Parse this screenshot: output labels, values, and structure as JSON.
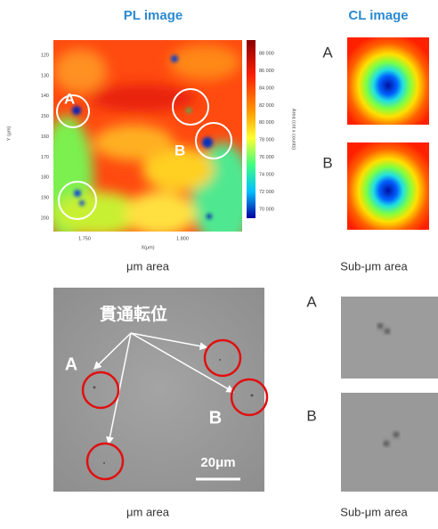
{
  "headers": {
    "pl": "PL image",
    "cl": "CL image"
  },
  "pl_map": {
    "y_axis_label": "Y (μm)",
    "x_axis_label": "X(μm)",
    "y_ticks": [
      "120",
      "130",
      "140",
      "150",
      "160",
      "170",
      "180",
      "190",
      "200"
    ],
    "x_ticks": [
      "1.750",
      "1.800"
    ],
    "colorbar_label": "Area (cnt x counts)",
    "colorbar_ticks": [
      "88 000",
      "86 000",
      "84 000",
      "82 000",
      "80 000",
      "78 000",
      "76 000",
      "74 000",
      "72 000",
      "70 000"
    ],
    "markers": [
      "A",
      "B"
    ],
    "caption": "μm area"
  },
  "cl_map": {
    "labels": [
      "A",
      "B"
    ],
    "caption": "Sub-μm area"
  },
  "sem": {
    "annotation": "貫通転位",
    "markers": [
      "A",
      "B"
    ],
    "scale": "20μm",
    "caption": "μm area"
  },
  "sem_sub": {
    "labels": [
      "A",
      "B"
    ],
    "caption": "Sub-μm area"
  }
}
